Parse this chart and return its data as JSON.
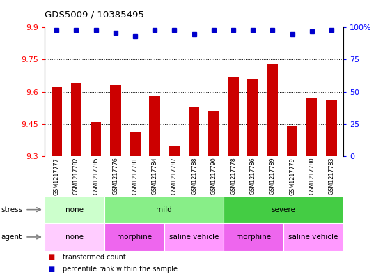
{
  "title": "GDS5009 / 10385495",
  "samples": [
    "GSM1217777",
    "GSM1217782",
    "GSM1217785",
    "GSM1217776",
    "GSM1217781",
    "GSM1217784",
    "GSM1217787",
    "GSM1217788",
    "GSM1217790",
    "GSM1217778",
    "GSM1217786",
    "GSM1217789",
    "GSM1217779",
    "GSM1217780",
    "GSM1217783"
  ],
  "bar_values": [
    9.62,
    9.64,
    9.46,
    9.63,
    9.41,
    9.58,
    9.35,
    9.53,
    9.51,
    9.67,
    9.66,
    9.73,
    9.44,
    9.57,
    9.56
  ],
  "percentile_values": [
    98,
    98,
    98,
    96,
    93,
    98,
    98,
    95,
    98,
    98,
    98,
    98,
    95,
    97,
    98
  ],
  "bar_color": "#cc0000",
  "dot_color": "#0000cc",
  "ylim_left": [
    9.3,
    9.9
  ],
  "ylim_right": [
    0,
    100
  ],
  "yticks_left": [
    9.3,
    9.45,
    9.6,
    9.75,
    9.9
  ],
  "yticks_right": [
    0,
    25,
    50,
    75,
    100
  ],
  "ytick_labels_left": [
    "9.3",
    "9.45",
    "9.6",
    "9.75",
    "9.9"
  ],
  "ytick_labels_right": [
    "0",
    "25",
    "50",
    "75",
    "100%"
  ],
  "grid_values": [
    9.45,
    9.6,
    9.75
  ],
  "stress_groups": [
    {
      "label": "none",
      "start": 0,
      "end": 3,
      "color": "#ccffcc"
    },
    {
      "label": "mild",
      "start": 3,
      "end": 9,
      "color": "#88ee88"
    },
    {
      "label": "severe",
      "start": 9,
      "end": 15,
      "color": "#44cc44"
    }
  ],
  "agent_groups": [
    {
      "label": "none",
      "start": 0,
      "end": 3,
      "color": "#ffccff"
    },
    {
      "label": "morphine",
      "start": 3,
      "end": 6,
      "color": "#ee66ee"
    },
    {
      "label": "saline vehicle",
      "start": 6,
      "end": 9,
      "color": "#ff99ff"
    },
    {
      "label": "morphine",
      "start": 9,
      "end": 12,
      "color": "#ee66ee"
    },
    {
      "label": "saline vehicle",
      "start": 12,
      "end": 15,
      "color": "#ff99ff"
    }
  ],
  "legend_items": [
    {
      "label": "transformed count",
      "color": "#cc0000"
    },
    {
      "label": "percentile rank within the sample",
      "color": "#0000cc"
    }
  ],
  "bg_color": "#ffffff",
  "tick_area_bg": "#cccccc",
  "base_value": 9.3,
  "n": 15
}
